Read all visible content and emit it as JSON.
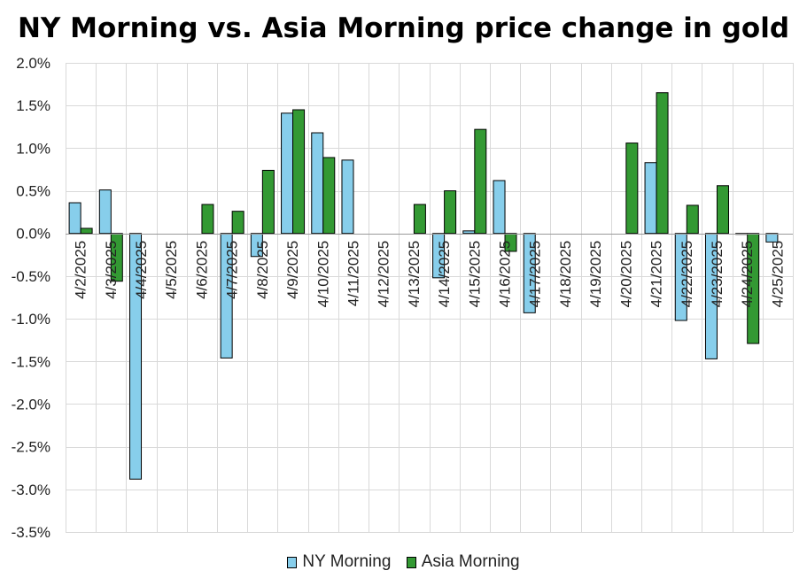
{
  "chart_data": {
    "type": "bar",
    "title": "NY Morning vs. Asia Morning price change in gold",
    "xlabel": "",
    "ylabel": "",
    "ylim": [
      -3.5,
      2.0
    ],
    "ytick_step": 0.5,
    "ytick_labels": [
      "2.0%",
      "1.5%",
      "1.0%",
      "0.5%",
      "0.0%",
      "-0.5%",
      "-1.0%",
      "-1.5%",
      "-2.0%",
      "-2.5%",
      "-3.0%",
      "-3.5%"
    ],
    "grid": true,
    "legend_position": "bottom",
    "categories": [
      "4/2/2025",
      "4/3/2025",
      "4/4/2025",
      "4/5/2025",
      "4/6/2025",
      "4/7/2025",
      "4/8/2025",
      "4/9/2025",
      "4/10/2025",
      "4/11/2025",
      "4/12/2025",
      "4/13/2025",
      "4/14/2025",
      "4/15/2025",
      "4/16/2025",
      "4/17/2025",
      "4/18/2025",
      "4/19/2025",
      "4/20/2025",
      "4/21/2025",
      "4/22/2025",
      "4/23/2025",
      "4/24/2025",
      "4/25/2025"
    ],
    "series": [
      {
        "name": "NY Morning",
        "color": "#87CEEB",
        "values": [
          0.36,
          0.51,
          -2.88,
          0,
          0,
          -1.46,
          -0.27,
          1.41,
          1.18,
          0.86,
          0,
          0,
          -0.52,
          0.03,
          0.62,
          -0.93,
          0,
          0,
          0,
          0.83,
          -1.02,
          -1.47,
          -0.01,
          -0.1
        ]
      },
      {
        "name": "Asia Morning",
        "color": "#339933",
        "values": [
          0.06,
          -0.56,
          0,
          0,
          0.34,
          0.26,
          0.74,
          1.45,
          0.89,
          0,
          0,
          0.34,
          0.5,
          1.22,
          -0.21,
          0,
          0,
          0,
          1.06,
          1.65,
          0.33,
          0.56,
          -1.29,
          0
        ]
      }
    ]
  }
}
